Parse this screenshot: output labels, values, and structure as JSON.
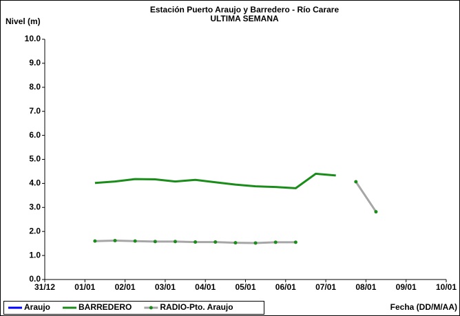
{
  "chart_data": {
    "type": "line",
    "title": "Estación Puerto Araujo y Barredero - Río Carare",
    "subtitle": "ULTIMA SEMANA",
    "y_label": "Nivel (m)",
    "x_label": "Fecha (DD/M/AA)",
    "x": [
      1.25,
      1.75,
      2.25,
      2.75,
      3.25,
      3.75,
      4.25,
      4.75,
      5.25,
      5.75,
      6.25,
      6.75,
      7.25,
      7.75,
      8.25
    ],
    "series": [
      {
        "name": "Araujo",
        "color": "#0000ff",
        "markers": false,
        "values": [
          null,
          null,
          null,
          null,
          null,
          null,
          null,
          null,
          null,
          null,
          null,
          null,
          null,
          null,
          null
        ]
      },
      {
        "name": "BARREDERO",
        "color": "#1a8c1a",
        "markers": false,
        "values": [
          4.02,
          4.08,
          4.18,
          4.17,
          4.08,
          4.15,
          4.05,
          3.95,
          3.88,
          3.85,
          3.8,
          4.4,
          4.33,
          null,
          null
        ]
      },
      {
        "name": "RADIO-Pto. Araujo",
        "color": "#a6a6a6",
        "marker_color": "#1a8c1a",
        "markers": true,
        "values": [
          1.6,
          1.62,
          1.6,
          1.58,
          1.58,
          1.56,
          1.56,
          1.53,
          1.52,
          1.55,
          1.55,
          null,
          null,
          4.07,
          2.82
        ]
      }
    ],
    "xlim": [
      0,
      10
    ],
    "xticks": [
      {
        "value": 0,
        "label": "31/12"
      },
      {
        "value": 1,
        "label": "01/01"
      },
      {
        "value": 2,
        "label": "02/01"
      },
      {
        "value": 3,
        "label": "03/01"
      },
      {
        "value": 4,
        "label": "04/01"
      },
      {
        "value": 5,
        "label": "05/01"
      },
      {
        "value": 6,
        "label": "06/01"
      },
      {
        "value": 7,
        "label": "07/01"
      },
      {
        "value": 8,
        "label": "08/01"
      },
      {
        "value": 9,
        "label": "09/01"
      },
      {
        "value": 10,
        "label": "10/01"
      }
    ],
    "ylim": [
      0,
      10
    ],
    "yticks": [
      {
        "value": 0,
        "label": "0.0"
      },
      {
        "value": 1,
        "label": "1.0"
      },
      {
        "value": 2,
        "label": "2.0"
      },
      {
        "value": 3,
        "label": "3.0"
      },
      {
        "value": 4,
        "label": "4.0"
      },
      {
        "value": 5,
        "label": "5.0"
      },
      {
        "value": 6,
        "label": "6.0"
      },
      {
        "value": 7,
        "label": "7.0"
      },
      {
        "value": 8,
        "label": "8.0"
      },
      {
        "value": 9,
        "label": "9.0"
      },
      {
        "value": 10,
        "label": "10.0"
      }
    ],
    "grid": false,
    "legend": "bottom-left"
  }
}
